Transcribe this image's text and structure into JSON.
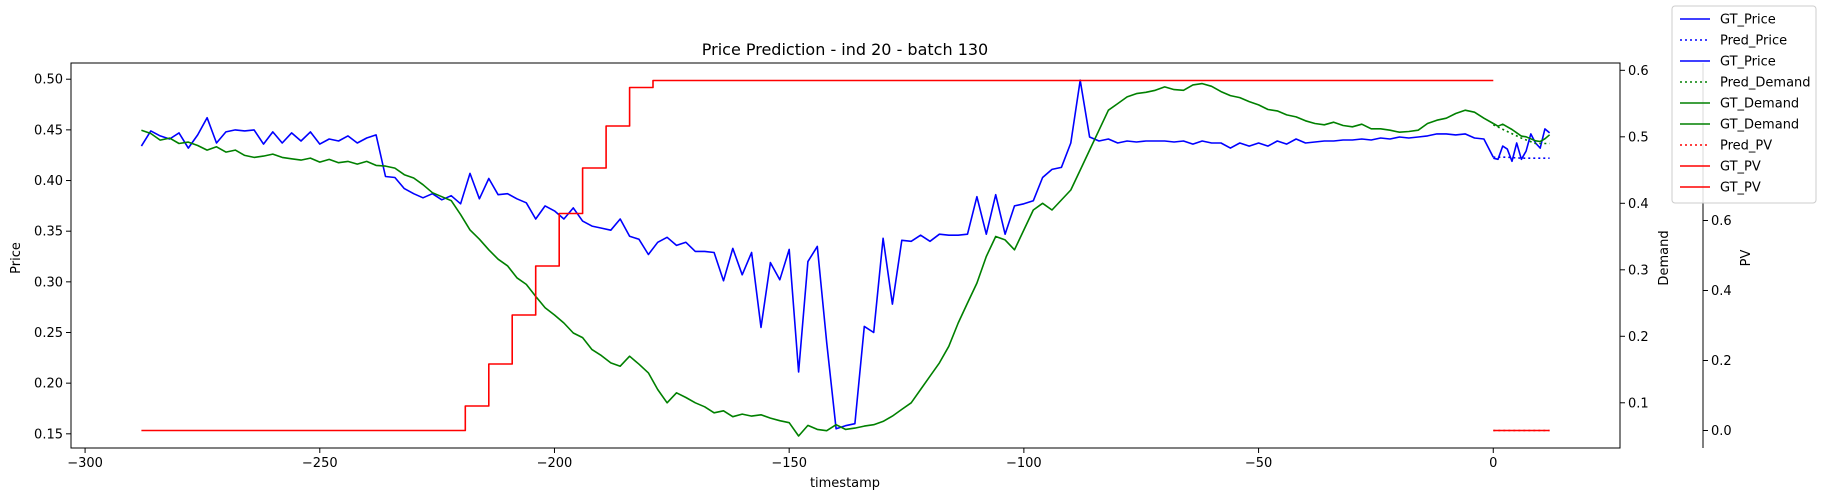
{
  "chart_data": {
    "type": "line",
    "title": "Price Prediction - ind 20 - batch 130",
    "xlabel": "timestamp",
    "xlim": [
      -303,
      27
    ],
    "xticks": [
      -300,
      -250,
      -200,
      -150,
      -100,
      -50,
      0
    ],
    "y_axes": [
      {
        "id": "price",
        "label": "Price",
        "color": "#0000ff",
        "side": "left",
        "ylim": [
          0.136,
          0.516
        ],
        "ticks": [
          0.15,
          0.2,
          0.25,
          0.3,
          0.35,
          0.4,
          0.45,
          0.5
        ]
      },
      {
        "id": "demand",
        "label": "Demand",
        "color": "#008000",
        "side": "right",
        "ylim": [
          0.032,
          0.611
        ],
        "ticks": [
          0.1,
          0.2,
          0.3,
          0.4,
          0.5,
          0.6
        ]
      },
      {
        "id": "pv",
        "label": "PV",
        "color": "#ff0000",
        "side": "right-outer",
        "ylim": [
          -0.05,
          1.05
        ],
        "ticks": [
          0.0,
          0.2,
          0.4,
          0.6
        ]
      }
    ],
    "grid": false,
    "legend_position": "upper right, outside",
    "series": [
      {
        "name": "GT_Price",
        "axis": "price",
        "color": "#0000ff",
        "style": "solid",
        "x": [
          -288,
          -286,
          -284,
          -282,
          -280,
          -278,
          -276,
          -274,
          -272,
          -270,
          -268,
          -266,
          -264,
          -262,
          -260,
          -258,
          -256,
          -254,
          -252,
          -250,
          -248,
          -246,
          -244,
          -242,
          -240,
          -238,
          -236,
          -234,
          -232,
          -230,
          -228,
          -226,
          -224,
          -222,
          -220,
          -218,
          -216,
          -214,
          -212,
          -210,
          -208,
          -206,
          -204,
          -202,
          -200,
          -198,
          -196,
          -194,
          -192,
          -190,
          -188,
          -186,
          -184,
          -182,
          -180,
          -178,
          -176,
          -174,
          -172,
          -170,
          -168,
          -166,
          -164,
          -162,
          -160,
          -158,
          -156,
          -154,
          -152,
          -150,
          -148,
          -146,
          -144,
          -142,
          -140,
          -138,
          -136,
          -134,
          -132,
          -130,
          -128,
          -126,
          -124,
          -122,
          -120,
          -118,
          -116,
          -114,
          -112,
          -110,
          -108,
          -106,
          -104,
          -102,
          -100,
          -98,
          -96,
          -94,
          -92,
          -90,
          -88,
          -86,
          -84,
          -82,
          -80,
          -78,
          -76,
          -74,
          -72,
          -70,
          -68,
          -66,
          -64,
          -62,
          -60,
          -58,
          -56,
          -54,
          -52,
          -50,
          -48,
          -46,
          -44,
          -42,
          -40,
          -38,
          -36,
          -34,
          -32,
          -30,
          -28,
          -26,
          -24,
          -22,
          -20,
          -18,
          -16,
          -14,
          -12,
          -10,
          -8,
          -6,
          -4,
          -2,
          0
        ],
        "y": [
          0.434,
          0.449,
          0.444,
          0.441,
          0.447,
          0.432,
          0.445,
          0.462,
          0.437,
          0.448,
          0.45,
          0.449,
          0.45,
          0.436,
          0.448,
          0.437,
          0.447,
          0.439,
          0.448,
          0.436,
          0.441,
          0.439,
          0.444,
          0.437,
          0.442,
          0.445,
          0.404,
          0.403,
          0.392,
          0.387,
          0.383,
          0.387,
          0.381,
          0.385,
          0.377,
          0.407,
          0.382,
          0.402,
          0.386,
          0.387,
          0.382,
          0.378,
          0.362,
          0.375,
          0.37,
          0.362,
          0.373,
          0.36,
          0.355,
          0.353,
          0.351,
          0.362,
          0.345,
          0.342,
          0.327,
          0.339,
          0.344,
          0.336,
          0.339,
          0.33,
          0.33,
          0.329,
          0.301,
          0.333,
          0.307,
          0.329,
          0.255,
          0.319,
          0.302,
          0.332,
          0.211,
          0.32,
          0.335,
          0.24,
          0.155,
          0.158,
          0.16,
          0.256,
          0.25,
          0.343,
          0.278,
          0.341,
          0.34,
          0.346,
          0.34,
          0.347,
          0.346,
          0.346,
          0.347,
          0.384,
          0.347,
          0.386,
          0.347,
          0.375,
          0.377,
          0.38,
          0.403,
          0.411,
          0.413,
          0.437,
          0.499,
          0.443,
          0.439,
          0.441,
          0.437,
          0.439,
          0.438,
          0.439,
          0.439,
          0.439,
          0.438,
          0.439,
          0.436,
          0.439,
          0.437,
          0.437,
          0.432,
          0.437,
          0.434,
          0.437,
          0.434,
          0.439,
          0.436,
          0.441,
          0.437,
          0.438,
          0.439,
          0.439,
          0.44,
          0.44,
          0.441,
          0.44,
          0.442,
          0.441,
          0.443,
          0.442,
          0.443,
          0.444,
          0.446,
          0.446,
          0.445,
          0.446,
          0.442,
          0.441,
          0.423
        ]
      },
      {
        "name": "Pred_Price",
        "axis": "price",
        "color": "#0000ff",
        "style": "dotted",
        "x": [
          0,
          3,
          6,
          9,
          12
        ],
        "y": [
          0.423,
          0.423,
          0.422,
          0.422,
          0.422
        ]
      },
      {
        "name": "GT_Price",
        "axis": "price",
        "color": "#0000ff",
        "style": "solid",
        "x": [
          0,
          1,
          2,
          3,
          4,
          5,
          6,
          7,
          8,
          9,
          10,
          11,
          12
        ],
        "y": [
          0.422,
          0.421,
          0.434,
          0.431,
          0.419,
          0.437,
          0.421,
          0.429,
          0.446,
          0.437,
          0.432,
          0.451,
          0.447
        ]
      },
      {
        "name": "Pred_Demand",
        "axis": "demand",
        "color": "#008000",
        "style": "dotted",
        "x": [
          0,
          3,
          6,
          9,
          12
        ],
        "y": [
          0.518,
          0.508,
          0.498,
          0.49,
          0.49
        ]
      },
      {
        "name": "GT_Demand",
        "axis": "demand",
        "color": "#008000",
        "style": "solid",
        "x": [
          -288,
          -286,
          -284,
          -282,
          -280,
          -278,
          -276,
          -274,
          -272,
          -270,
          -268,
          -266,
          -264,
          -262,
          -260,
          -258,
          -256,
          -254,
          -252,
          -250,
          -248,
          -246,
          -244,
          -242,
          -240,
          -238,
          -236,
          -234,
          -232,
          -230,
          -228,
          -226,
          -224,
          -222,
          -220,
          -218,
          -216,
          -214,
          -212,
          -210,
          -208,
          -206,
          -204,
          -202,
          -200,
          -198,
          -196,
          -194,
          -192,
          -190,
          -188,
          -186,
          -184,
          -182,
          -180,
          -178,
          -176,
          -174,
          -172,
          -170,
          -168,
          -166,
          -164,
          -162,
          -160,
          -158,
          -156,
          -154,
          -152,
          -150,
          -148,
          -146,
          -144,
          -142,
          -140,
          -138,
          -136,
          -134,
          -132,
          -130,
          -128,
          -126,
          -124,
          -122,
          -120,
          -118,
          -116,
          -114,
          -112,
          -110,
          -108,
          -106,
          -104,
          -102,
          -100,
          -98,
          -96,
          -94,
          -92,
          -90,
          -88,
          -86,
          -84,
          -82,
          -80,
          -78,
          -76,
          -74,
          -72,
          -70,
          -68,
          -66,
          -64,
          -62,
          -60,
          -58,
          -56,
          -54,
          -52,
          -50,
          -48,
          -46,
          -44,
          -42,
          -40,
          -38,
          -36,
          -34,
          -32,
          -30,
          -28,
          -26,
          -24,
          -22,
          -20,
          -18,
          -16,
          -14,
          -12,
          -10,
          -8,
          -6,
          -4,
          -2,
          0
        ],
        "y": [
          0.51,
          0.505,
          0.495,
          0.498,
          0.49,
          0.492,
          0.487,
          0.48,
          0.485,
          0.477,
          0.48,
          0.472,
          0.469,
          0.471,
          0.474,
          0.469,
          0.467,
          0.465,
          0.468,
          0.462,
          0.466,
          0.461,
          0.463,
          0.459,
          0.463,
          0.457,
          0.456,
          0.453,
          0.443,
          0.438,
          0.428,
          0.416,
          0.41,
          0.404,
          0.383,
          0.36,
          0.346,
          0.33,
          0.316,
          0.306,
          0.288,
          0.278,
          0.26,
          0.243,
          0.232,
          0.22,
          0.205,
          0.198,
          0.18,
          0.171,
          0.16,
          0.155,
          0.17,
          0.158,
          0.145,
          0.12,
          0.1,
          0.115,
          0.108,
          0.1,
          0.094,
          0.085,
          0.088,
          0.079,
          0.083,
          0.08,
          0.082,
          0.077,
          0.073,
          0.07,
          0.05,
          0.066,
          0.06,
          0.058,
          0.067,
          0.06,
          0.062,
          0.065,
          0.067,
          0.072,
          0.08,
          0.09,
          0.1,
          0.12,
          0.14,
          0.16,
          0.185,
          0.22,
          0.25,
          0.28,
          0.32,
          0.35,
          0.345,
          0.33,
          0.36,
          0.39,
          0.4,
          0.39,
          0.405,
          0.42,
          0.45,
          0.48,
          0.51,
          0.54,
          0.55,
          0.56,
          0.565,
          0.567,
          0.57,
          0.575,
          0.571,
          0.57,
          0.578,
          0.58,
          0.576,
          0.568,
          0.562,
          0.559,
          0.553,
          0.548,
          0.541,
          0.539,
          0.533,
          0.53,
          0.524,
          0.52,
          0.518,
          0.522,
          0.517,
          0.515,
          0.519,
          0.512,
          0.512,
          0.51,
          0.507,
          0.508,
          0.51,
          0.52,
          0.525,
          0.528,
          0.535,
          0.54,
          0.537,
          0.528,
          0.52
        ]
      },
      {
        "name": "GT_Demand",
        "axis": "demand",
        "color": "#008000",
        "style": "solid",
        "x": [
          0,
          1,
          2,
          3,
          4,
          5,
          6,
          7,
          8,
          9,
          10,
          11,
          12
        ],
        "y": [
          0.52,
          0.516,
          0.519,
          0.515,
          0.511,
          0.506,
          0.501,
          0.5,
          0.497,
          0.494,
          0.493,
          0.497,
          0.503
        ]
      },
      {
        "name": "Pred_PV",
        "axis": "pv",
        "color": "#ff0000",
        "style": "dotted",
        "x": [
          0,
          3,
          6,
          9,
          12
        ],
        "y": [
          0.0,
          0.0,
          0.0,
          0.0,
          0.0
        ]
      },
      {
        "name": "GT_PV",
        "axis": "pv",
        "color": "#ff0000",
        "style": "step",
        "x": [
          -288,
          -224,
          -219,
          -214,
          -209,
          -204,
          -199,
          -194,
          -189,
          -184,
          -179,
          -174,
          -169,
          -164,
          -159,
          -154,
          -149,
          -144,
          -139,
          -134,
          -129,
          -124,
          -119,
          -114,
          -109,
          -104,
          -99,
          -94,
          -89,
          -84,
          -79,
          -74,
          -69,
          -64,
          -59,
          -54,
          -49,
          -44,
          -39,
          -34,
          -29,
          -24,
          -19,
          -14,
          -9,
          -4,
          0
        ],
        "y": [
          0.0,
          0.0,
          0.07,
          0.19,
          0.33,
          0.47,
          0.62,
          0.75,
          0.87,
          0.98,
          1.0,
          1.0,
          1.0,
          1.0,
          1.0,
          1.0,
          1.0,
          1.0,
          1.0,
          1.0,
          1.0,
          1.0,
          1.0,
          1.0,
          1.0,
          1.0,
          1.0,
          1.0,
          1.0,
          1.0,
          1.0,
          1.0,
          1.0,
          1.0,
          1.0,
          1.0,
          1.0,
          1.0,
          1.0,
          1.0,
          1.0,
          1.0,
          1.0,
          1.0,
          1.0,
          1.0,
          1.0
        ]
      },
      {
        "name": "GT_PV",
        "axis": "pv",
        "color": "#ff0000",
        "style": "solid",
        "x": [
          0,
          3,
          6,
          9,
          12
        ],
        "y": [
          0.0,
          0.0,
          0.0,
          0.0,
          0.0
        ]
      }
    ],
    "legend": [
      {
        "label": "GT_Price",
        "color": "#0000ff",
        "style": "solid"
      },
      {
        "label": "Pred_Price",
        "color": "#0000ff",
        "style": "dotted"
      },
      {
        "label": "GT_Price",
        "color": "#0000ff",
        "style": "solid"
      },
      {
        "label": "Pred_Demand",
        "color": "#008000",
        "style": "dotted"
      },
      {
        "label": "GT_Demand",
        "color": "#008000",
        "style": "solid"
      },
      {
        "label": "GT_Demand",
        "color": "#008000",
        "style": "solid"
      },
      {
        "label": "Pred_PV",
        "color": "#ff0000",
        "style": "dotted"
      },
      {
        "label": "GT_PV",
        "color": "#ff0000",
        "style": "solid"
      },
      {
        "label": "GT_PV",
        "color": "#ff0000",
        "style": "solid"
      }
    ]
  }
}
